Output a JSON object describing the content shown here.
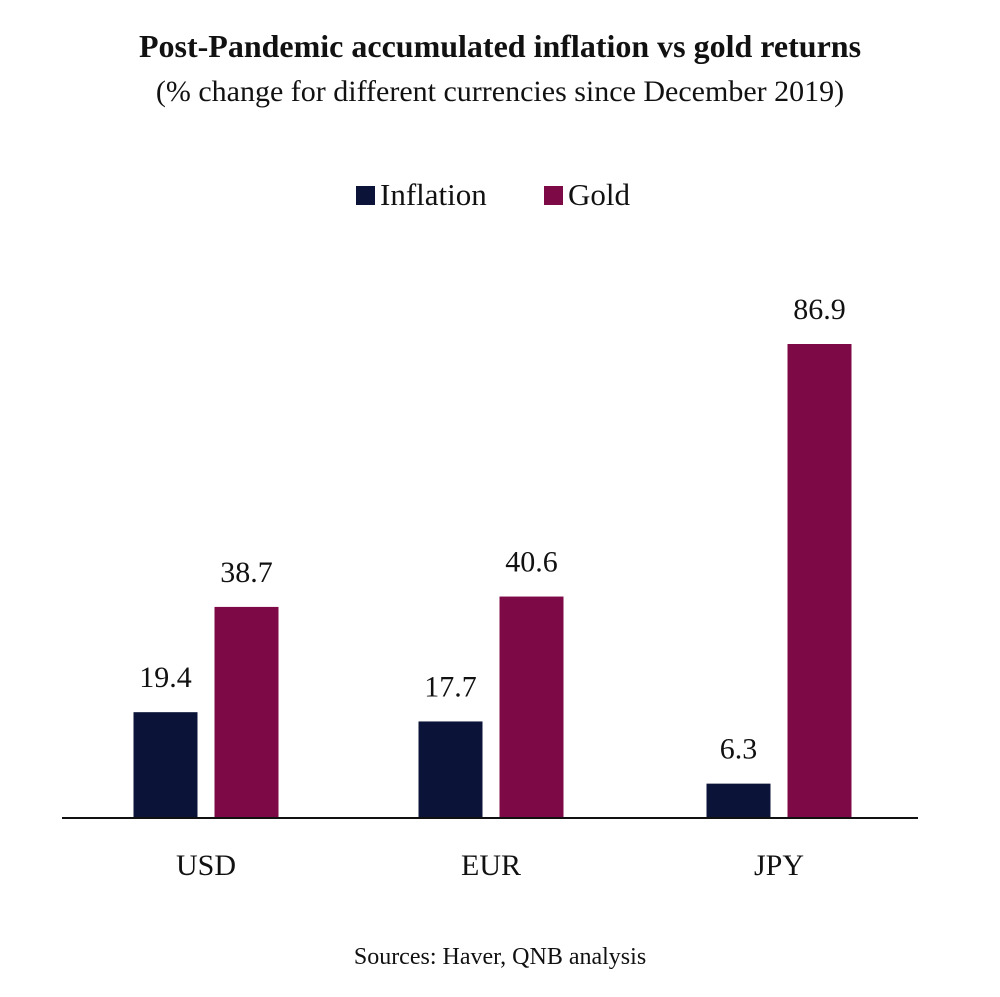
{
  "chart_data": {
    "type": "bar",
    "title": "Post-Pandemic accumulated inflation vs gold returns",
    "subtitle": "(% change for different currencies since December 2019)",
    "categories": [
      "USD",
      "EUR",
      "JPY"
    ],
    "series": [
      {
        "name": "Inflation",
        "color": "#0b1338",
        "values": [
          19.4,
          17.7,
          6.3
        ]
      },
      {
        "name": "Gold",
        "color": "#7d0a46",
        "values": [
          38.7,
          40.6,
          86.9
        ]
      }
    ],
    "value_labels": {
      "Inflation": [
        "19.4",
        "17.7",
        "6.3"
      ],
      "Gold": [
        "38.7",
        "40.6",
        "86.9"
      ]
    },
    "xlabel": "",
    "ylabel": "",
    "ylim": [
      0,
      100
    ],
    "grid": false,
    "legend_position": "top-center",
    "source": "Sources: Haver, QNB analysis"
  }
}
